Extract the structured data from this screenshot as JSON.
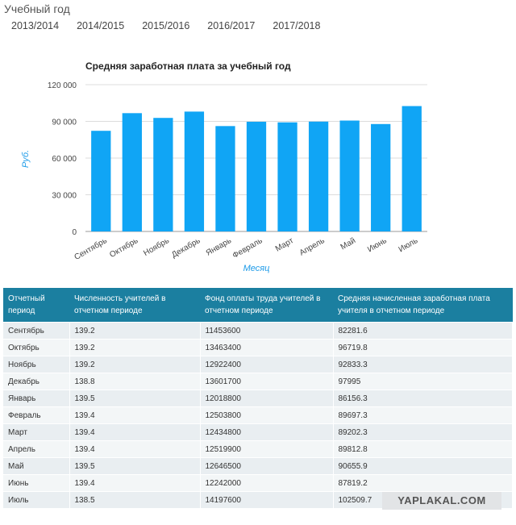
{
  "header": {
    "title": "Учебный год"
  },
  "year_tabs": [
    "2013/2014",
    "2014/2015",
    "2015/2016",
    "2016/2017",
    "2017/2018"
  ],
  "chart_data": {
    "type": "bar",
    "title": "Средняя заработная плата за учебный год",
    "xlabel": "Месяц",
    "ylabel": "Руб.",
    "categories": [
      "Сентябрь",
      "Октябрь",
      "Ноябрь",
      "Декабрь",
      "Январь",
      "Февраль",
      "Март",
      "Апрель",
      "Май",
      "Июнь",
      "Июль"
    ],
    "values": [
      82281.6,
      96719.8,
      92833.3,
      97995,
      86156.3,
      89697.3,
      89202.3,
      89812.8,
      90655.9,
      87819.2,
      102509.7
    ],
    "ylim": [
      0,
      120000
    ],
    "yticks": [
      "0",
      "30 000",
      "60 000",
      "90 000",
      "120 000"
    ],
    "grid": true,
    "bar_color": "#10a5f5"
  },
  "table": {
    "headers": [
      "Отчетный период",
      "Численность учителей в отчетном периоде",
      "Фонд оплаты труда учителей в отчетном периоде",
      "Средняя начисленная заработная плата учителя в отчетном периоде"
    ],
    "rows": [
      [
        "Сентябрь",
        "139.2",
        "11453600",
        "82281.6"
      ],
      [
        "Октябрь",
        "139.2",
        "13463400",
        "96719.8"
      ],
      [
        "Ноябрь",
        "139.2",
        "12922400",
        "92833.3"
      ],
      [
        "Декабрь",
        "138.8",
        "13601700",
        "97995"
      ],
      [
        "Январь",
        "139.5",
        "12018800",
        "86156.3"
      ],
      [
        "Февраль",
        "139.4",
        "12503800",
        "89697.3"
      ],
      [
        "Март",
        "139.4",
        "12434800",
        "89202.3"
      ],
      [
        "Апрель",
        "139.4",
        "12519900",
        "89812.8"
      ],
      [
        "Май",
        "139.5",
        "12646500",
        "90655.9"
      ],
      [
        "Июнь",
        "139.4",
        "12242000",
        "87819.2"
      ],
      [
        "Июль",
        "138.5",
        "14197600",
        "102509.7"
      ]
    ]
  },
  "watermark": "YAPLAKAL.COM",
  "colors": {
    "table_header": "#1b7fa0",
    "axis_title": "#1e9be8"
  }
}
